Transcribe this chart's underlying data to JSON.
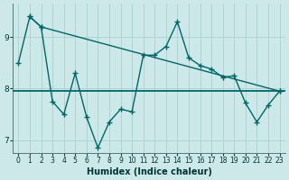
{
  "xlabel": "Humidex (Indice chaleur)",
  "background_color": "#cce8e8",
  "grid_color": "#b0d4d4",
  "line_color": "#006666",
  "xlim": [
    -0.5,
    23.5
  ],
  "ylim": [
    6.75,
    9.65
  ],
  "yticks": [
    7,
    8,
    9
  ],
  "xticks": [
    0,
    1,
    2,
    3,
    4,
    5,
    6,
    7,
    8,
    9,
    10,
    11,
    12,
    13,
    14,
    15,
    16,
    17,
    18,
    19,
    20,
    21,
    22,
    23
  ],
  "hline_y": 7.95,
  "series1_x": [
    0,
    1,
    2,
    3,
    4,
    5,
    6,
    7,
    8,
    9,
    10,
    11,
    12,
    13,
    14,
    15,
    16,
    17,
    18,
    19,
    20,
    21,
    22,
    23
  ],
  "series1_y": [
    8.5,
    9.4,
    9.2,
    7.75,
    7.5,
    8.3,
    7.45,
    6.85,
    7.35,
    7.6,
    7.55,
    8.65,
    8.65,
    8.82,
    9.3,
    8.6,
    8.45,
    8.38,
    8.22,
    8.25,
    7.72,
    7.35,
    7.68,
    7.95
  ],
  "series2_x": [
    1,
    2,
    23
  ],
  "series2_y": [
    9.4,
    9.2,
    7.95
  ],
  "marker_size": 2.5,
  "line_width": 1.0,
  "tick_fontsize": 6,
  "label_fontsize": 7
}
